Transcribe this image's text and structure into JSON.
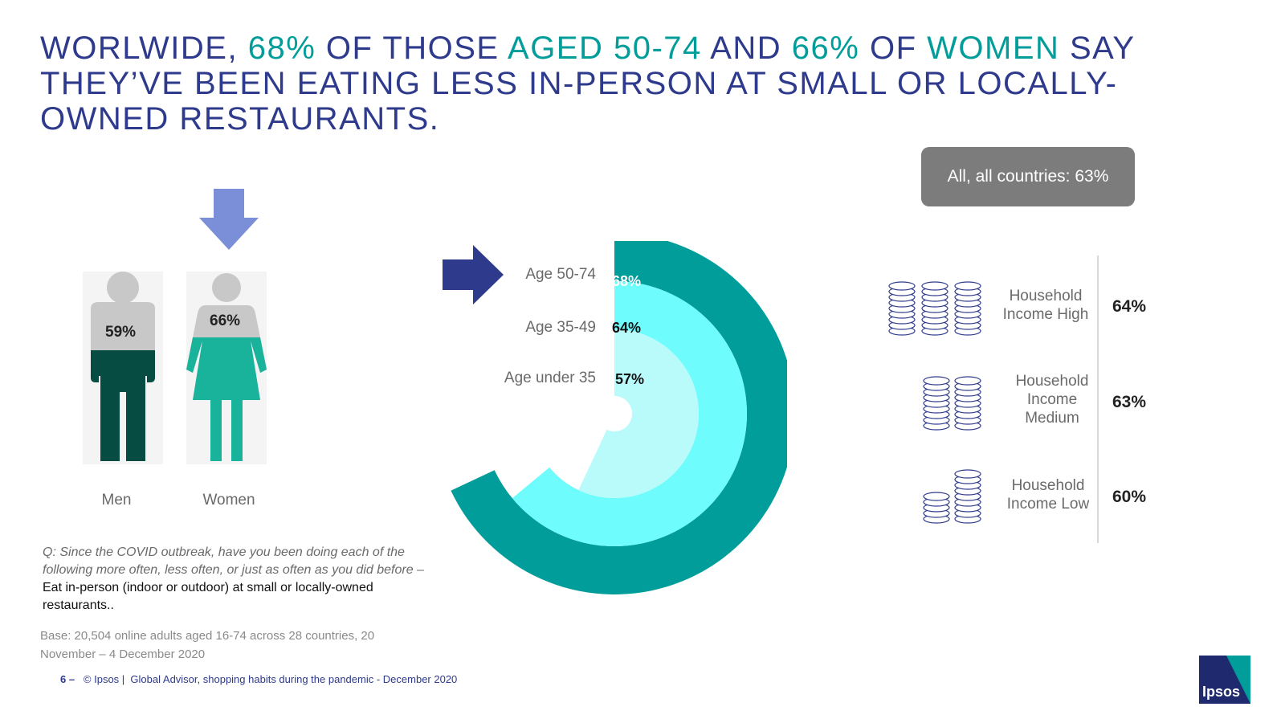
{
  "title": {
    "parts": [
      "WORLWIDE, ",
      "68%",
      " OF THOSE ",
      "AGED 50-74",
      " AND ",
      "66%",
      " OF ",
      "WOMEN",
      " SAY THEY’VE BEEN EATING LESS IN-PERSON AT SMALL OR LOCALLY-OWNED RESTAURANTS."
    ]
  },
  "all_countries": "All, all countries: 63%",
  "gender": {
    "men": {
      "label": "Men",
      "pct": "59%"
    },
    "women": {
      "label": "Women",
      "pct": "66%"
    }
  },
  "question": {
    "prompt": "Q: Since the COVID outbreak, have you been doing each of the following more often, less often, or just as often as you did before – ",
    "answer": "Eat in-person (indoor or outdoor) at small or locally-owned restaurants.."
  },
  "base": "Base: 20,504 online adults aged 16-74 across 28 countries, 20 November – 4 December 2020",
  "footer": {
    "page": "6 –",
    "copyright": "© Ipsos |",
    "source": "Global Advisor, shopping habits during the pandemic - December 2020"
  },
  "logo_text": "Ipsos",
  "colors": {
    "title_blue": "#2e3a8c",
    "accent_teal": "#009d9a",
    "ring_outer": "#009d9a",
    "ring_mid": "#6ffcfc",
    "ring_inner": "#b9fbfb",
    "men_fill": "#064c43",
    "women_fill": "#19b39b",
    "figure_grey": "#c8c8c8",
    "arrow_blue": "#7b8fd8",
    "arrow_dark": "#2e3a8c"
  },
  "icons": [
    "arrow-down-icon",
    "arrow-right-icon",
    "man-icon",
    "woman-icon",
    "coin-stack-icon"
  ],
  "chart_data": [
    {
      "type": "bar",
      "categories": [
        "Men",
        "Women"
      ],
      "values": [
        59,
        66
      ],
      "labels": [
        "59%",
        "66%"
      ]
    },
    {
      "type": "pie",
      "categories": [
        "Age 50-74",
        "Age 35-49",
        "Age under 35"
      ],
      "values": [
        68,
        64,
        57
      ],
      "labels": [
        "68%",
        "64%",
        "57%"
      ]
    },
    {
      "type": "table",
      "categories": [
        "Household Income High",
        "Household Income Medium",
        "Household Income Low"
      ],
      "values": [
        64,
        63,
        60
      ],
      "labels": [
        "64%",
        "63%",
        "60%"
      ]
    }
  ]
}
